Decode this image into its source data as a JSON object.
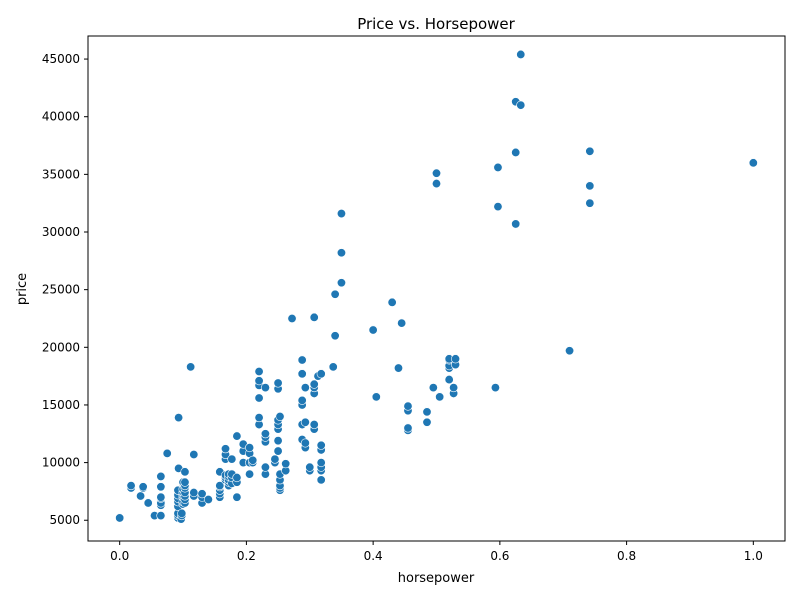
{
  "chart_data": {
    "type": "scatter",
    "title": "Price vs. Horsepower",
    "xlabel": "horsepower",
    "ylabel": "price",
    "xlim": [
      -0.05,
      1.05
    ],
    "ylim": [
      3200,
      47000
    ],
    "xticks": [
      0.0,
      0.2,
      0.4,
      0.6,
      0.8,
      1.0
    ],
    "xtick_labels": [
      "0.0",
      "0.2",
      "0.4",
      "0.6",
      "0.8",
      "1.0"
    ],
    "yticks": [
      5000,
      10000,
      15000,
      20000,
      25000,
      30000,
      35000,
      40000,
      45000
    ],
    "ytick_labels": [
      "5000",
      "10000",
      "15000",
      "20000",
      "25000",
      "30000",
      "35000",
      "40000",
      "45000"
    ],
    "grid": false,
    "marker_color": "#1f77b4",
    "marker_edge": "#ffffff",
    "points": [
      [
        0.0,
        5200
      ],
      [
        0.018,
        7800
      ],
      [
        0.018,
        8000
      ],
      [
        0.033,
        7100
      ],
      [
        0.037,
        7800
      ],
      [
        0.037,
        7900
      ],
      [
        0.045,
        6500
      ],
      [
        0.055,
        5400
      ],
      [
        0.065,
        5400
      ],
      [
        0.065,
        6300
      ],
      [
        0.065,
        6500
      ],
      [
        0.065,
        6900
      ],
      [
        0.065,
        7000
      ],
      [
        0.065,
        7900
      ],
      [
        0.065,
        8800
      ],
      [
        0.075,
        10800
      ],
      [
        0.092,
        5200
      ],
      [
        0.092,
        5400
      ],
      [
        0.092,
        5600
      ],
      [
        0.092,
        6200
      ],
      [
        0.092,
        6600
      ],
      [
        0.092,
        6900
      ],
      [
        0.092,
        7200
      ],
      [
        0.092,
        7600
      ],
      [
        0.093,
        9500
      ],
      [
        0.093,
        13900
      ],
      [
        0.097,
        5100
      ],
      [
        0.098,
        5400
      ],
      [
        0.098,
        5600
      ],
      [
        0.1,
        6400
      ],
      [
        0.1,
        6600
      ],
      [
        0.1,
        7000
      ],
      [
        0.1,
        7200
      ],
      [
        0.1,
        7400
      ],
      [
        0.1,
        7700
      ],
      [
        0.1,
        8200
      ],
      [
        0.1,
        8300
      ],
      [
        0.103,
        6500
      ],
      [
        0.103,
        6800
      ],
      [
        0.103,
        7100
      ],
      [
        0.103,
        7400
      ],
      [
        0.103,
        7800
      ],
      [
        0.103,
        8000
      ],
      [
        0.103,
        8300
      ],
      [
        0.103,
        9200
      ],
      [
        0.112,
        18300
      ],
      [
        0.117,
        7100
      ],
      [
        0.117,
        7400
      ],
      [
        0.117,
        10700
      ],
      [
        0.13,
        6500
      ],
      [
        0.13,
        7000
      ],
      [
        0.13,
        7300
      ],
      [
        0.14,
        6800
      ],
      [
        0.158,
        7000
      ],
      [
        0.158,
        7300
      ],
      [
        0.158,
        7600
      ],
      [
        0.158,
        7900
      ],
      [
        0.158,
        8000
      ],
      [
        0.158,
        9200
      ],
      [
        0.167,
        8500
      ],
      [
        0.167,
        8700
      ],
      [
        0.167,
        8900
      ],
      [
        0.167,
        10300
      ],
      [
        0.167,
        10700
      ],
      [
        0.167,
        11200
      ],
      [
        0.172,
        8000
      ],
      [
        0.172,
        8300
      ],
      [
        0.172,
        8500
      ],
      [
        0.172,
        8800
      ],
      [
        0.172,
        9000
      ],
      [
        0.177,
        8200
      ],
      [
        0.177,
        8700
      ],
      [
        0.177,
        9000
      ],
      [
        0.177,
        10300
      ],
      [
        0.185,
        7000
      ],
      [
        0.185,
        8300
      ],
      [
        0.185,
        8700
      ],
      [
        0.185,
        12300
      ],
      [
        0.195,
        10000
      ],
      [
        0.195,
        11000
      ],
      [
        0.195,
        11600
      ],
      [
        0.205,
        9000
      ],
      [
        0.205,
        10000
      ],
      [
        0.205,
        10800
      ],
      [
        0.205,
        11300
      ],
      [
        0.21,
        10000
      ],
      [
        0.21,
        10200
      ],
      [
        0.22,
        13300
      ],
      [
        0.22,
        13900
      ],
      [
        0.22,
        15600
      ],
      [
        0.22,
        16700
      ],
      [
        0.22,
        17100
      ],
      [
        0.22,
        17900
      ],
      [
        0.23,
        9000
      ],
      [
        0.23,
        9600
      ],
      [
        0.23,
        11800
      ],
      [
        0.23,
        12200
      ],
      [
        0.23,
        12500
      ],
      [
        0.23,
        16500
      ],
      [
        0.245,
        10000
      ],
      [
        0.245,
        10300
      ],
      [
        0.25,
        11000
      ],
      [
        0.25,
        11900
      ],
      [
        0.25,
        12900
      ],
      [
        0.25,
        13300
      ],
      [
        0.25,
        13700
      ],
      [
        0.25,
        16400
      ],
      [
        0.25,
        16900
      ],
      [
        0.253,
        7600
      ],
      [
        0.253,
        7800
      ],
      [
        0.253,
        8000
      ],
      [
        0.253,
        8500
      ],
      [
        0.253,
        9000
      ],
      [
        0.253,
        14000
      ],
      [
        0.262,
        9300
      ],
      [
        0.262,
        9900
      ],
      [
        0.272,
        22500
      ],
      [
        0.288,
        12000
      ],
      [
        0.288,
        13300
      ],
      [
        0.288,
        15000
      ],
      [
        0.288,
        15400
      ],
      [
        0.288,
        17700
      ],
      [
        0.288,
        18900
      ],
      [
        0.293,
        11300
      ],
      [
        0.293,
        11700
      ],
      [
        0.293,
        13500
      ],
      [
        0.293,
        16500
      ],
      [
        0.3,
        9300
      ],
      [
        0.3,
        9600
      ],
      [
        0.307,
        12900
      ],
      [
        0.307,
        13300
      ],
      [
        0.307,
        16000
      ],
      [
        0.307,
        16500
      ],
      [
        0.307,
        16800
      ],
      [
        0.307,
        22600
      ],
      [
        0.313,
        17500
      ],
      [
        0.318,
        8500
      ],
      [
        0.318,
        9300
      ],
      [
        0.318,
        9600
      ],
      [
        0.318,
        10000
      ],
      [
        0.318,
        11100
      ],
      [
        0.318,
        11500
      ],
      [
        0.318,
        17700
      ],
      [
        0.337,
        18300
      ],
      [
        0.34,
        21000
      ],
      [
        0.34,
        24600
      ],
      [
        0.35,
        25600
      ],
      [
        0.35,
        28200
      ],
      [
        0.35,
        31600
      ],
      [
        0.4,
        21500
      ],
      [
        0.405,
        15700
      ],
      [
        0.43,
        23900
      ],
      [
        0.44,
        18200
      ],
      [
        0.445,
        22100
      ],
      [
        0.455,
        12800
      ],
      [
        0.455,
        13000
      ],
      [
        0.455,
        14500
      ],
      [
        0.455,
        14900
      ],
      [
        0.485,
        13500
      ],
      [
        0.485,
        14400
      ],
      [
        0.495,
        16500
      ],
      [
        0.5,
        34200
      ],
      [
        0.5,
        35100
      ],
      [
        0.505,
        15700
      ],
      [
        0.52,
        17200
      ],
      [
        0.52,
        18200
      ],
      [
        0.52,
        18400
      ],
      [
        0.52,
        18900
      ],
      [
        0.52,
        19000
      ],
      [
        0.527,
        16000
      ],
      [
        0.527,
        16500
      ],
      [
        0.53,
        18500
      ],
      [
        0.53,
        19000
      ],
      [
        0.593,
        16500
      ],
      [
        0.597,
        32200
      ],
      [
        0.597,
        35600
      ],
      [
        0.625,
        30700
      ],
      [
        0.625,
        36900
      ],
      [
        0.625,
        41300
      ],
      [
        0.633,
        41000
      ],
      [
        0.633,
        45400
      ],
      [
        0.71,
        19700
      ],
      [
        0.742,
        32500
      ],
      [
        0.742,
        34000
      ],
      [
        0.742,
        37000
      ],
      [
        1.0,
        36000
      ]
    ]
  }
}
